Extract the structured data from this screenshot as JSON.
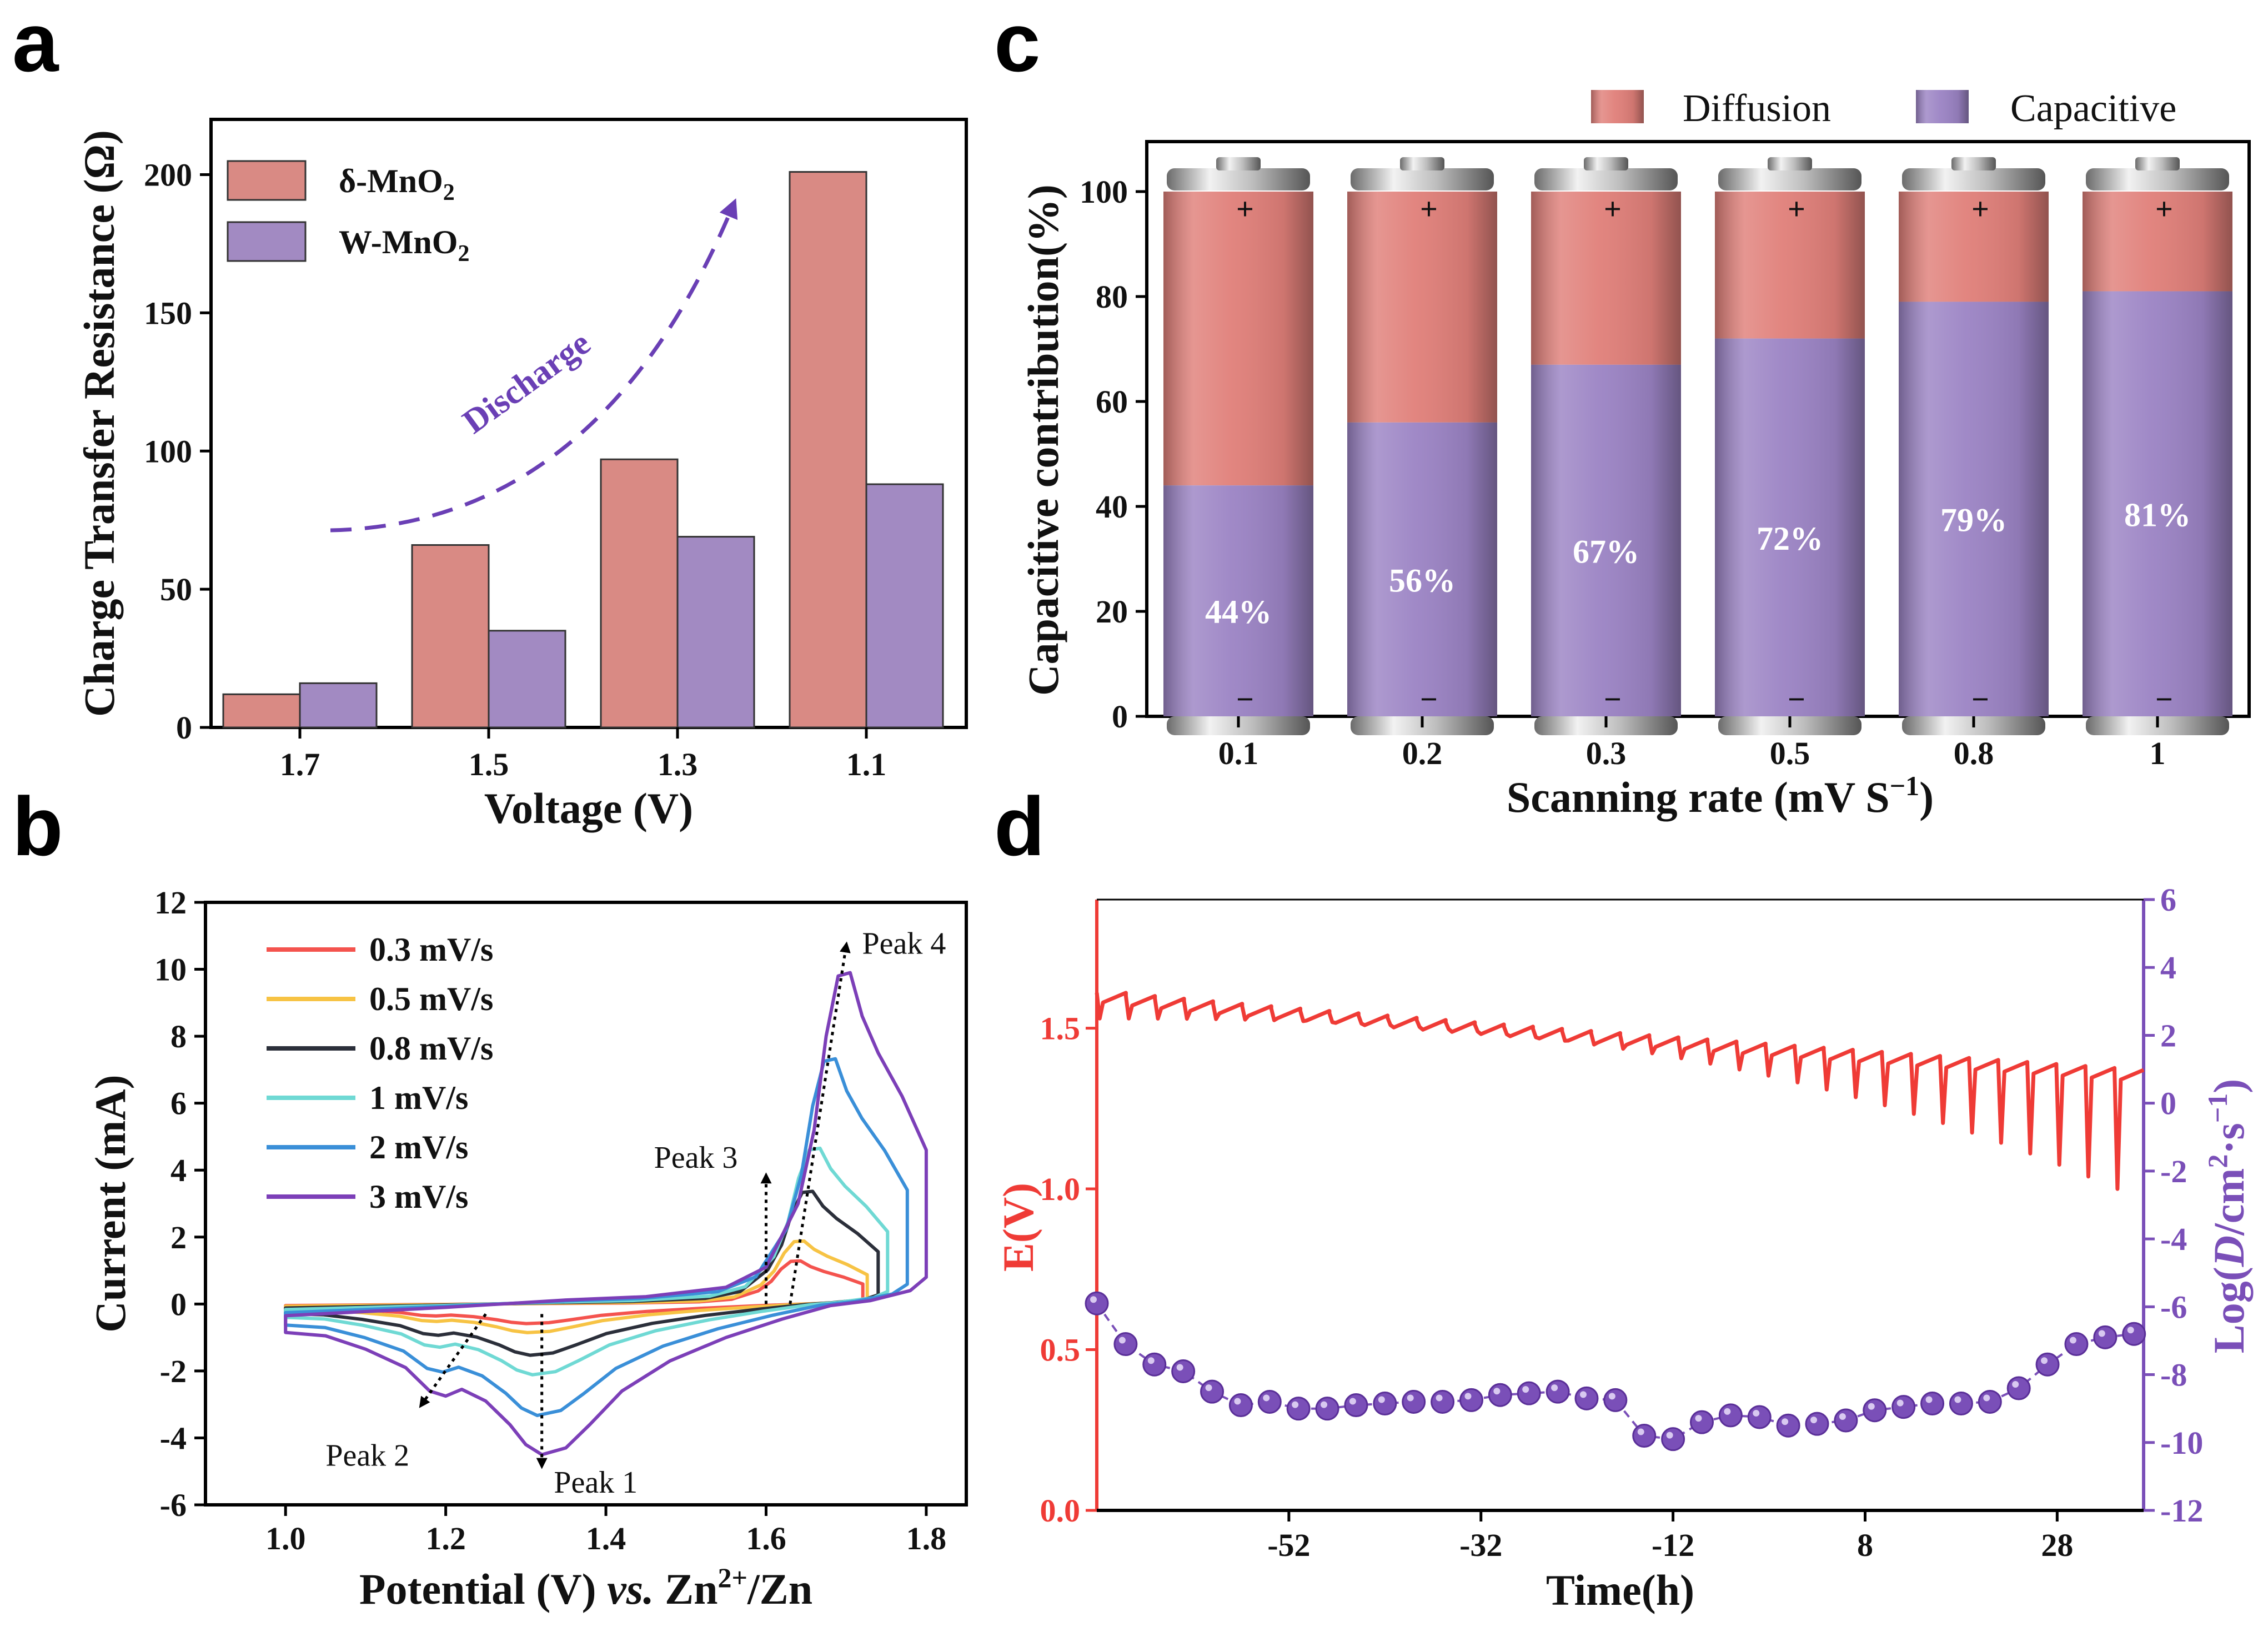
{
  "colors": {
    "delta_mno2": "#d98a84",
    "w_mno2": "#a28ac2",
    "diffusion": "#e07f79",
    "capacitive": "#9b83c4",
    "e_curve": "#ef3b36",
    "log_d": "#7a4fb8",
    "discharge_arrow": "#6a3fb5"
  },
  "chart_data": [
    {
      "panel": "a",
      "type": "bar",
      "categories": [
        "1.7",
        "1.5",
        "1.3",
        "1.1"
      ],
      "series": [
        {
          "name": "δ-MnO",
          "name_subscript": "2",
          "values": [
            12,
            66,
            97,
            201
          ]
        },
        {
          "name": "W-MnO",
          "name_subscript": "2",
          "values": [
            16,
            35,
            69,
            88
          ]
        }
      ],
      "xlabel": "Voltage (V)",
      "ylabel": "Charge Transfer Resistance (Ω)",
      "ylim": [
        0,
        220
      ],
      "yticks": [
        0,
        50,
        100,
        150,
        200
      ],
      "annotation": "Discharge"
    },
    {
      "panel": "b",
      "type": "line",
      "xlabel_parts": [
        "Potential (V) ",
        "vs.",
        " Zn",
        "2+",
        "/Zn"
      ],
      "ylabel": "Current (mA)",
      "xlim": [
        0.9,
        1.85
      ],
      "ylim": [
        -6,
        12
      ],
      "xticks": [
        1.0,
        1.2,
        1.4,
        1.6,
        1.8
      ],
      "yticks": [
        -6,
        -4,
        -2,
        0,
        2,
        4,
        6,
        8,
        10,
        12
      ],
      "series": [
        {
          "name": "0.3 mV/s",
          "color": "#f4534e",
          "scale": 0.13
        },
        {
          "name": "0.5 mV/s",
          "color": "#f7c344",
          "scale": 0.19
        },
        {
          "name": "0.8 mV/s",
          "color": "#2b2f3a",
          "scale": 0.34
        },
        {
          "name": "1 mV/s",
          "color": "#6fd9d4",
          "scale": 0.47
        },
        {
          "name": "2 mV/s",
          "color": "#3a8fd8",
          "scale": 0.74
        },
        {
          "name": "3 mV/s",
          "color": "#7c3fb8",
          "scale": 1.0
        }
      ],
      "shape_points": [
        [
          1.0,
          -0.85
        ],
        [
          1.05,
          -0.95
        ],
        [
          1.1,
          -1.35
        ],
        [
          1.15,
          -1.9
        ],
        [
          1.18,
          -2.6
        ],
        [
          1.2,
          -2.75
        ],
        [
          1.22,
          -2.55
        ],
        [
          1.25,
          -2.9
        ],
        [
          1.28,
          -3.6
        ],
        [
          1.3,
          -4.2
        ],
        [
          1.32,
          -4.5
        ],
        [
          1.35,
          -4.3
        ],
        [
          1.38,
          -3.6
        ],
        [
          1.42,
          -2.6
        ],
        [
          1.48,
          -1.7
        ],
        [
          1.55,
          -1.0
        ],
        [
          1.62,
          -0.45
        ],
        [
          1.68,
          -0.05
        ],
        [
          1.73,
          0.1
        ],
        [
          1.78,
          0.4
        ],
        [
          1.8,
          0.8
        ],
        [
          1.8,
          4.6
        ],
        [
          1.77,
          6.2
        ],
        [
          1.74,
          7.5
        ],
        [
          1.72,
          8.6
        ],
        [
          1.705,
          9.9
        ],
        [
          1.69,
          9.8
        ],
        [
          1.675,
          8.0
        ],
        [
          1.66,
          5.2
        ],
        [
          1.64,
          3.0
        ],
        [
          1.6,
          1.1
        ],
        [
          1.55,
          0.5
        ],
        [
          1.45,
          0.22
        ],
        [
          1.35,
          0.12
        ],
        [
          1.2,
          -0.1
        ],
        [
          1.0,
          -0.35
        ]
      ],
      "peaks": [
        "Peak 1",
        "Peak 2",
        "Peak 3",
        "Peak 4"
      ]
    },
    {
      "panel": "c",
      "type": "bar",
      "stacked": true,
      "categories": [
        "0.1",
        "0.2",
        "0.3",
        "0.5",
        "0.8",
        "1"
      ],
      "series": [
        {
          "name": "Capacitive",
          "values": [
            44,
            56,
            67,
            72,
            79,
            81
          ]
        },
        {
          "name": "Diffusion",
          "values": [
            56,
            44,
            33,
            28,
            21,
            19
          ]
        }
      ],
      "labels": [
        "44%",
        "56%",
        "67%",
        "72%",
        "79%",
        "81%"
      ],
      "ylabel": "Capacitive contribution(%)",
      "xlabel_main": "Scanning rate (mV S",
      "xlabel_sup": "−1",
      "xlabel_close": ")",
      "ylim": [
        0,
        100
      ],
      "yticks": [
        0,
        20,
        40,
        60,
        80,
        100
      ],
      "battery_plus": "+",
      "battery_minus": "−"
    },
    {
      "panel": "d",
      "type": "line",
      "xlabel": "Time(h)",
      "ylabel_left": "E(V)",
      "ylabel_right_parts": [
        "Log(",
        "D",
        "/cm",
        "2",
        "·s",
        "−1",
        ")"
      ],
      "xlim": [
        -72,
        37
      ],
      "xticks": [
        -52,
        -32,
        -12,
        8,
        28
      ],
      "ylim_left": [
        0.0,
        1.9
      ],
      "yticks_left": [
        "0.0",
        "0.5",
        "1.0",
        "1.5"
      ],
      "ylim_right": [
        -12,
        6
      ],
      "yticks_right": [
        -12,
        -10,
        -8,
        -6,
        -4,
        -2,
        0,
        2,
        4,
        6
      ],
      "e_pulses": {
        "start_time": -72,
        "end_time": 37,
        "count": 36,
        "relax_start": 1.61,
        "relax_end": 1.37,
        "dip_start": 1.53,
        "dip_end": 1.0
      },
      "log_d_points": [
        [
          -72,
          -5.9
        ],
        [
          -69,
          -7.1
        ],
        [
          -66,
          -7.7
        ],
        [
          -63,
          -7.9
        ],
        [
          -60,
          -8.5
        ],
        [
          -57,
          -8.9
        ],
        [
          -54,
          -8.8
        ],
        [
          -51,
          -9.0
        ],
        [
          -48,
          -9.0
        ],
        [
          -45,
          -8.9
        ],
        [
          -42,
          -8.85
        ],
        [
          -39,
          -8.8
        ],
        [
          -36,
          -8.8
        ],
        [
          -33,
          -8.75
        ],
        [
          -30,
          -8.6
        ],
        [
          -27,
          -8.55
        ],
        [
          -24,
          -8.5
        ],
        [
          -21,
          -8.7
        ],
        [
          -18,
          -8.75
        ],
        [
          -15,
          -9.8
        ],
        [
          -12,
          -9.9
        ],
        [
          -9,
          -9.4
        ],
        [
          -6,
          -9.2
        ],
        [
          -3,
          -9.25
        ],
        [
          0,
          -9.5
        ],
        [
          3,
          -9.45
        ],
        [
          6,
          -9.35
        ],
        [
          9,
          -9.05
        ],
        [
          12,
          -8.95
        ],
        [
          15,
          -8.85
        ],
        [
          18,
          -8.85
        ],
        [
          21,
          -8.8
        ],
        [
          24,
          -8.4
        ],
        [
          27,
          -7.7
        ],
        [
          30,
          -7.1
        ],
        [
          33,
          -6.9
        ],
        [
          36,
          -6.8
        ]
      ]
    }
  ]
}
